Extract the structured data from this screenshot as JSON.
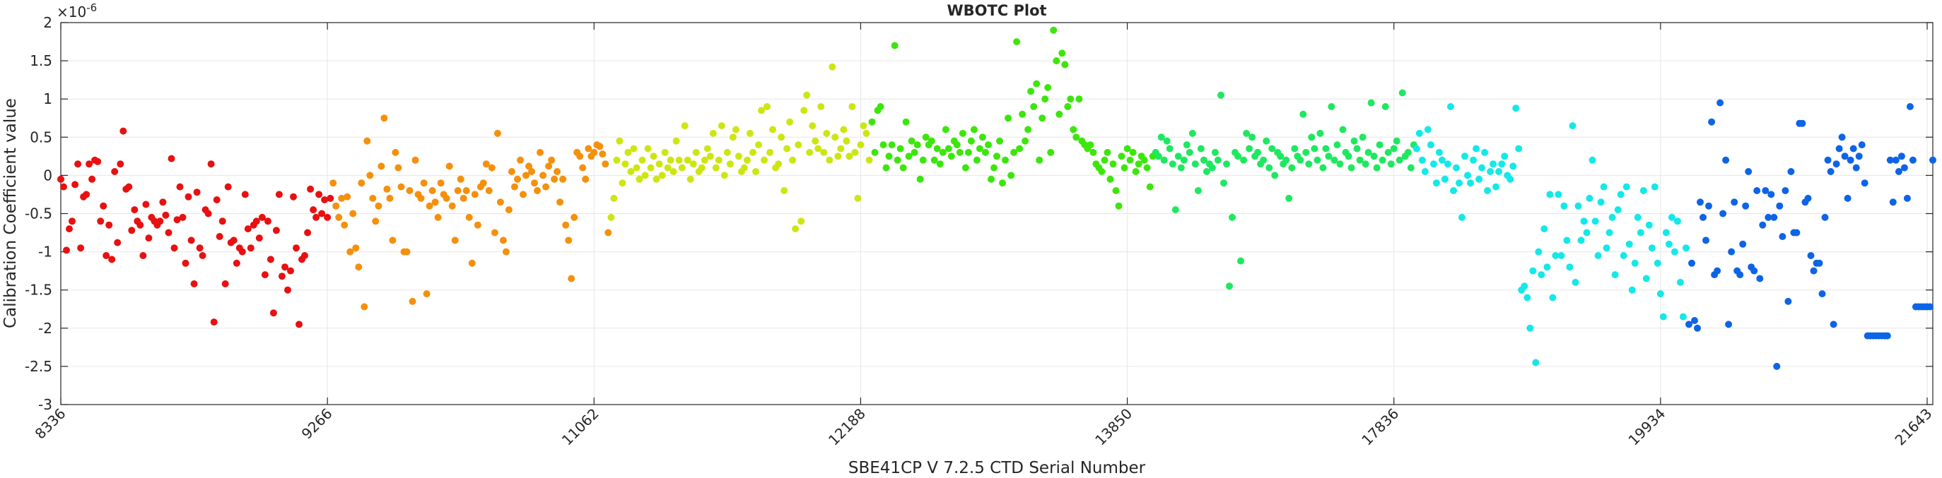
{
  "chart_data": {
    "type": "scatter",
    "title": "WBOTC Plot",
    "xlabel": "SBE41CP V 7.2.5 CTD Serial Number",
    "ylabel": "Calibration Coefficient value",
    "y_exponent_label": "×10",
    "y_exponent_power": "-6",
    "ylim": [
      -3,
      2
    ],
    "yticks": [
      -3,
      -2.5,
      -2,
      -1.5,
      -1,
      -0.5,
      0,
      0.5,
      1,
      1.5,
      2
    ],
    "ytick_labels": [
      "-3",
      "-2.5",
      "-2",
      "-1.5",
      "-1",
      "-0.5",
      "0",
      "0.5",
      "1",
      "1.5",
      "2"
    ],
    "xtick_labels": [
      "8336",
      "9266",
      "11062",
      "12188",
      "13850",
      "17836",
      "19934",
      "21643"
    ],
    "x_index_range": [
      0,
      660
    ],
    "grid": true,
    "series": [
      {
        "name": "segment-1",
        "color": "#e81010",
        "x_index_range": [
          0,
          95
        ],
        "y": [
          -0.05,
          -0.15,
          -0.98,
          -0.7,
          -0.6,
          -0.12,
          0.15,
          -0.95,
          -0.28,
          -0.25,
          0.15,
          -0.05,
          0.2,
          0.18,
          -0.6,
          -0.4,
          -1.05,
          -0.65,
          -1.1,
          0.05,
          -0.88,
          0.15,
          0.58,
          -0.18,
          -0.15,
          -0.72,
          -0.45,
          -0.6,
          -0.65,
          -1.05,
          -0.38,
          -0.82,
          -0.55,
          -0.6,
          -0.65,
          -0.6,
          -0.35,
          -0.52,
          -0.75,
          0.22,
          -0.95,
          -0.58,
          -0.15,
          -0.55,
          -1.15,
          -0.28,
          -0.85,
          -1.42,
          -0.22,
          -0.95,
          -1.05,
          -0.45,
          -0.5,
          0.15,
          -1.92,
          -0.32,
          -0.8,
          -0.6,
          -1.42,
          -0.15,
          -0.88,
          -0.85,
          -1.15,
          -0.95,
          -1.0,
          -0.25,
          -0.7,
          -0.95,
          -0.65,
          -0.6,
          -0.82,
          -0.55,
          -1.3,
          -0.6,
          -1.1,
          -1.8,
          -0.72,
          -0.25,
          -1.32,
          -1.2,
          -1.5,
          -1.25,
          -0.28,
          -0.95,
          -1.95,
          -1.1,
          -1.05,
          -0.75,
          -0.18,
          -0.45,
          -0.55,
          -0.25,
          -0.5,
          -0.32,
          -0.55,
          -0.3
        ]
      },
      {
        "name": "segment-2",
        "color": "#f5900c",
        "x_index_range": [
          96,
          193
        ],
        "y": [
          -0.1,
          -0.4,
          -0.55,
          -0.3,
          -0.65,
          -0.28,
          -1.0,
          -0.5,
          -0.95,
          -1.2,
          -0.1,
          -1.72,
          0.45,
          0.0,
          -0.3,
          -0.6,
          -0.4,
          0.12,
          0.75,
          -0.18,
          -0.3,
          -0.85,
          0.3,
          0.1,
          -0.15,
          -1.0,
          -1.0,
          -0.2,
          -1.65,
          0.2,
          -0.25,
          -0.3,
          -0.1,
          -1.55,
          -0.4,
          -0.2,
          -0.35,
          -0.55,
          -0.1,
          -0.25,
          -0.3,
          0.12,
          -0.4,
          -0.85,
          -0.2,
          -0.05,
          -0.3,
          -0.2,
          -0.55,
          -1.15,
          -0.25,
          -0.65,
          -0.15,
          -0.1,
          0.15,
          -0.2,
          0.1,
          -0.75,
          0.55,
          -0.35,
          -0.85,
          -1.0,
          -0.45,
          0.05,
          -0.15,
          -0.05,
          0.2,
          -0.25,
          0.0,
          0.12,
          0.05,
          -0.1,
          -0.2,
          0.3,
          0.0,
          -0.15,
          0.12,
          0.2,
          -0.05,
          0.05,
          -0.35,
          -0.05,
          -0.65,
          -0.85,
          -1.35,
          -0.55,
          0.3,
          0.25,
          0.1,
          -0.05,
          0.35,
          0.25,
          0.3,
          0.4,
          0.38,
          0.28,
          0.15,
          -0.75
        ]
      },
      {
        "name": "segment-3",
        "color": "#cde612",
        "x_index_range": [
          194,
          285
        ],
        "y": [
          -0.55,
          -0.3,
          0.2,
          0.45,
          -0.1,
          0.15,
          0.3,
          0.05,
          0.35,
          0.1,
          -0.05,
          0.2,
          0.0,
          0.35,
          0.1,
          0.25,
          -0.05,
          0.15,
          0.0,
          0.3,
          0.1,
          0.2,
          0.05,
          0.45,
          0.2,
          0.1,
          0.65,
          0.2,
          -0.05,
          0.15,
          0.3,
          0.05,
          0.1,
          0.2,
          0.35,
          0.25,
          0.55,
          0.1,
          0.2,
          0.65,
          0.0,
          0.3,
          0.15,
          0.5,
          0.6,
          0.25,
          0.05,
          0.1,
          0.2,
          0.55,
          0.3,
          0.05,
          0.4,
          0.85,
          0.2,
          0.9,
          0.3,
          0.6,
          0.1,
          0.15,
          0.5,
          -0.2,
          0.35,
          0.7,
          0.2,
          -0.7,
          0.4,
          -0.6,
          0.85,
          1.05,
          0.3,
          0.65,
          0.45,
          0.35,
          0.9,
          0.3,
          0.55,
          0.2,
          1.42,
          0.5,
          0.25,
          0.35,
          0.6,
          0.45,
          0.25,
          0.9,
          0.3,
          -0.3,
          0.4,
          0.65,
          0.55,
          0.2
        ]
      },
      {
        "name": "segment-4",
        "color": "#3ce60c",
        "x_index_range": [
          286,
          385
        ],
        "y": [
          0.7,
          0.3,
          0.85,
          0.9,
          0.4,
          0.1,
          0.25,
          0.4,
          1.7,
          0.2,
          0.35,
          0.1,
          0.7,
          0.25,
          0.45,
          0.3,
          0.4,
          -0.05,
          0.2,
          0.5,
          0.4,
          0.45,
          0.2,
          0.35,
          0.15,
          0.3,
          0.6,
          0.35,
          0.25,
          0.45,
          0.4,
          0.3,
          0.55,
          0.1,
          0.3,
          0.45,
          0.6,
          0.2,
          0.35,
          0.5,
          0.3,
          0.4,
          -0.05,
          0.1,
          0.25,
          0.45,
          -0.1,
          0.2,
          0.75,
          0.0,
          0.3,
          1.75,
          0.35,
          0.8,
          0.45,
          0.6,
          1.1,
          0.9,
          1.2,
          0.2,
          0.75,
          1.0,
          1.15,
          0.3,
          1.9,
          1.5,
          0.8,
          1.6,
          1.45,
          0.9,
          1.0,
          0.6,
          0.5,
          1.0,
          0.45,
          0.4,
          0.35,
          0.4,
          0.3,
          0.15,
          0.1,
          0.05,
          0.2,
          0.3,
          -0.05,
          0.15,
          -0.2,
          -0.4,
          0.25,
          0.1,
          0.35,
          0.2,
          0.3,
          0.05,
          0.15,
          0.25,
          0.2,
          0.1,
          -0.15,
          0.25
        ]
      },
      {
        "name": "segment-5",
        "color": "#1ee860",
        "x_index_range": [
          386,
          477
        ],
        "y": [
          0.3,
          0.25,
          0.5,
          0.2,
          0.45,
          0.35,
          0.15,
          -0.45,
          0.25,
          0.1,
          0.2,
          0.4,
          0.3,
          0.55,
          0.15,
          -0.2,
          0.35,
          0.2,
          0.05,
          0.15,
          0.1,
          0.3,
          0.2,
          1.05,
          -0.1,
          0.15,
          -1.45,
          -0.55,
          0.3,
          0.25,
          -1.12,
          0.2,
          0.55,
          0.35,
          0.5,
          0.25,
          0.3,
          0.15,
          0.2,
          0.45,
          0.1,
          0.35,
          0.0,
          0.3,
          0.25,
          0.15,
          0.2,
          -0.3,
          0.1,
          0.35,
          0.25,
          0.2,
          0.8,
          0.3,
          0.15,
          0.5,
          0.35,
          0.2,
          0.55,
          0.1,
          0.35,
          0.25,
          0.9,
          0.2,
          0.4,
          0.15,
          0.6,
          0.3,
          0.25,
          0.1,
          0.45,
          0.35,
          0.2,
          0.5,
          0.15,
          0.3,
          0.95,
          0.25,
          0.1,
          0.4,
          0.2,
          0.9,
          0.3,
          0.15,
          0.35,
          0.45,
          0.2,
          1.08,
          0.25,
          0.3,
          0.1,
          0.4
        ]
      },
      {
        "name": "segment-6",
        "color": "#14e8e8",
        "x_index_range": [
          478,
          573
        ],
        "y": [
          0.35,
          0.55,
          0.2,
          0.05,
          0.6,
          0.4,
          0.15,
          -0.1,
          0.3,
          0.2,
          -0.05,
          0.15,
          0.9,
          -0.2,
          0.1,
          -0.1,
          -0.55,
          0.25,
          0.0,
          -0.1,
          0.2,
          0.35,
          -0.05,
          0.1,
          0.3,
          -0.2,
          0.05,
          0.15,
          -0.15,
          0.05,
          0.15,
          0.25,
          0.0,
          -0.05,
          0.12,
          0.88,
          0.35,
          -1.5,
          -1.45,
          -1.6,
          -2.0,
          -1.25,
          -2.45,
          -1.0,
          -1.3,
          -0.7,
          -1.2,
          -0.25,
          -1.6,
          -1.05,
          -0.25,
          -1.05,
          -0.4,
          -0.85,
          -1.2,
          0.65,
          -1.4,
          -0.4,
          -0.85,
          -0.6,
          -0.75,
          -0.3,
          0.2,
          -0.6,
          -1.05,
          -0.35,
          -0.15,
          -0.95,
          -0.75,
          -0.55,
          -1.3,
          -0.45,
          -0.25,
          -1.05,
          -0.15,
          -0.9,
          -1.5,
          -1.15,
          -0.55,
          -0.75,
          -0.2,
          -1.35,
          -0.65,
          -0.95,
          -0.15,
          -1.15,
          -1.55,
          -1.85,
          -0.75,
          -0.9,
          -0.55,
          -1.0,
          -0.6,
          -1.4,
          -1.85,
          -0.95
        ]
      },
      {
        "name": "segment-7",
        "color": "#0d64e6",
        "x_index_range": [
          574,
          660
        ],
        "y": [
          -1.95,
          -1.15,
          -1.9,
          -2.0,
          -0.35,
          -0.55,
          -0.85,
          -0.4,
          0.7,
          -1.3,
          -1.25,
          0.95,
          -0.5,
          0.2,
          -1.95,
          -1.0,
          -0.35,
          -1.25,
          -1.3,
          -0.9,
          -0.4,
          0.05,
          -1.2,
          -1.25,
          -0.2,
          -1.35,
          -0.65,
          -0.2,
          -0.55,
          -0.25,
          -0.55,
          -2.5,
          -0.4,
          -0.8,
          -0.2,
          -1.65,
          0.05,
          -0.75,
          -0.75,
          0.68,
          0.68,
          -0.35,
          -0.3,
          -1.05,
          -1.25,
          -1.15,
          -1.15,
          -1.55,
          -0.55,
          0.2,
          0.05,
          -1.95,
          0.15,
          0.35,
          0.5,
          0.25,
          -0.3,
          0.2,
          0.35,
          0.1,
          0.25,
          0.4,
          -0.1,
          -2.1,
          -2.1,
          -2.1,
          -2.1,
          -2.1,
          -2.1,
          -2.1,
          -2.1,
          0.2,
          -0.35,
          0.2,
          0.05,
          0.25,
          0.1,
          -0.3,
          0.9,
          0.2,
          -1.72,
          -1.72,
          -1.72,
          -1.72,
          -1.72,
          -1.72,
          0.2
        ]
      }
    ]
  }
}
